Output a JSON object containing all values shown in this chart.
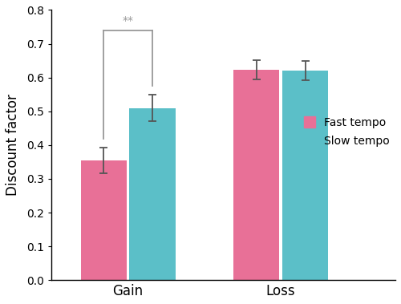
{
  "groups": [
    "Gain",
    "Loss"
  ],
  "fast_tempo_values": [
    0.355,
    0.623
  ],
  "slow_tempo_values": [
    0.51,
    0.621
  ],
  "fast_tempo_errors": [
    0.038,
    0.028
  ],
  "slow_tempo_errors": [
    0.04,
    0.028
  ],
  "fast_tempo_color": "#E87097",
  "slow_tempo_color": "#5BBFC8",
  "ylabel": "Discount factor",
  "ylim": [
    0,
    0.8
  ],
  "yticks": [
    0,
    0.1,
    0.2,
    0.3,
    0.4,
    0.5,
    0.6,
    0.7,
    0.8
  ],
  "bar_width": 0.3,
  "legend_labels": [
    "Fast tempo",
    "Slow tempo"
  ],
  "significance_text": "**"
}
